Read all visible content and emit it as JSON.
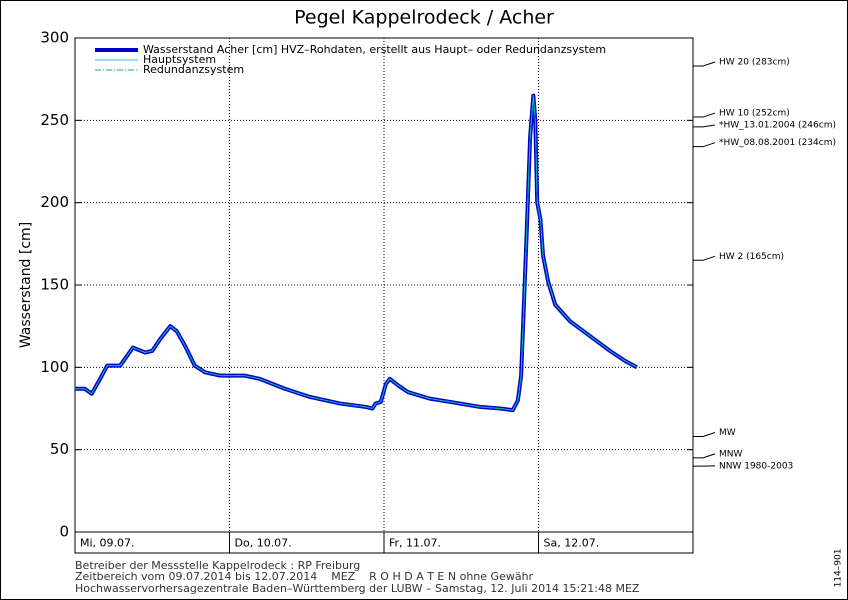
{
  "chart_data": {
    "type": "line",
    "title": "Pegel Kappelrodeck / Acher",
    "y_label": "Wasserstand [cm]",
    "x": [
      0,
      1.5,
      2.6,
      3.9,
      5,
      6.2,
      7,
      8.1,
      9,
      9.6,
      10.9,
      12,
      13.2,
      14.8,
      15.8,
      17.1,
      18.6,
      20.2,
      22.5,
      26.3,
      28.7,
      32.6,
      36.5,
      41.2,
      45.1,
      46.2,
      46.7,
      47.5,
      48.3,
      48.9,
      50.2,
      51.7,
      55.1,
      58.3,
      62.9,
      66,
      68,
      68.8,
      69.3,
      70.1,
      70.7,
      71.2,
      71.5,
      71.8,
      72.3,
      72.7,
      73.5,
      74.6,
      76.9,
      80,
      83.1,
      85.4,
      87.3
    ],
    "series": [
      {
        "name": "Wasserstand Acher [cm] HVZ–Rohdaten, erstellt aus Haupt– oder Redundanzsystem",
        "color": "#0000cc",
        "width": 4,
        "dash": "none",
        "values": [
          87,
          87,
          84,
          93,
          101,
          101,
          101,
          107,
          112,
          111,
          109,
          110,
          117,
          125,
          122,
          113,
          101,
          97,
          95,
          95,
          93,
          87,
          82,
          78,
          76,
          75,
          78,
          79,
          90,
          93,
          89,
          85,
          81,
          79,
          76,
          75,
          74,
          80,
          95,
          175,
          240,
          265,
          250,
          200,
          190,
          168,
          152,
          138,
          128,
          119,
          110,
          104,
          100
        ]
      },
      {
        "name": "Hauptsystem",
        "color": "#33bbdd",
        "width": 1,
        "dash": "none",
        "values": [
          87,
          87,
          84,
          93,
          101,
          101,
          101,
          107,
          112,
          111,
          109,
          110,
          117,
          125,
          122,
          113,
          101,
          97,
          95,
          95,
          93,
          87,
          82,
          78,
          76,
          75,
          78,
          79,
          90,
          93,
          89,
          85,
          81,
          79,
          76,
          75,
          74,
          80,
          95,
          175,
          240,
          265,
          250,
          200,
          190,
          168,
          152,
          138,
          128,
          119,
          110,
          104,
          100
        ]
      },
      {
        "name": "Redundanzsystem",
        "color": "#00aa99",
        "width": 1,
        "dash": "6 2 1 2",
        "values": [
          87,
          87,
          84,
          93,
          101,
          101,
          101,
          107,
          112,
          111,
          109,
          110,
          117,
          125,
          122,
          113,
          101,
          97,
          95,
          95,
          93,
          87,
          82,
          78,
          76,
          75,
          78,
          79,
          90,
          93,
          89,
          85,
          81,
          79,
          76,
          75,
          74,
          80,
          95,
          175,
          240,
          265,
          250,
          200,
          190,
          168,
          152,
          138,
          128,
          119,
          110,
          104,
          100
        ]
      }
    ],
    "xlim": [
      0,
      96
    ],
    "xticks": [
      {
        "value": 0,
        "label": "Mi, 09.07."
      },
      {
        "value": 24,
        "label": "Do, 10.07."
      },
      {
        "value": 48,
        "label": "Fr, 11.07."
      },
      {
        "value": 72,
        "label": "Sa, 12.07."
      }
    ],
    "ylim": [
      0,
      300
    ],
    "yticks": [
      0,
      50,
      100,
      150,
      200,
      250,
      300
    ],
    "grid": true,
    "reference_lines": [
      {
        "value": 283,
        "label": "HW 20 (283cm)"
      },
      {
        "value": 252,
        "label": "HW 10 (252cm)"
      },
      {
        "value": 246,
        "label": "*HW_13.01.2004 (246cm)"
      },
      {
        "value": 234,
        "label": "*HW_08.08.2001 (234cm)"
      },
      {
        "value": 165,
        "label": "HW 2 (165cm)"
      },
      {
        "value": 58,
        "label": "MW"
      },
      {
        "value": 45,
        "label": "MNW"
      },
      {
        "value": 40,
        "label": "NNW 1980-2003"
      }
    ],
    "footer": [
      "Betreiber der Messstelle Kappelrodeck : RP Freiburg",
      "Zeitbereich vom 09.07.2014 bis 12.07.2014    MEZ    R O H D A T E N ohne Gewähr",
      "Hochwasservorhersagezentrale Baden–Württemberg der LUBW – Samstag, 12. Juli 2014 15:21:48 MEZ"
    ],
    "code": "114–901"
  }
}
